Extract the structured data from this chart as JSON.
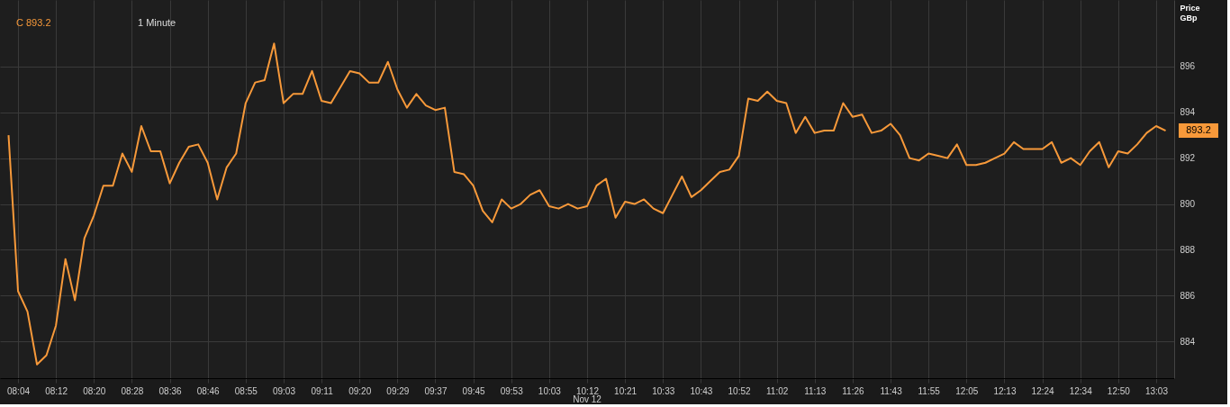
{
  "chart_data": {
    "type": "line",
    "ylabel": "Price GBp",
    "categories": [
      null,
      "08:04",
      null,
      null,
      null,
      "08:12",
      null,
      null,
      null,
      "08:20",
      null,
      null,
      null,
      "08:28",
      null,
      null,
      null,
      "08:36",
      null,
      null,
      null,
      "08:46",
      null,
      null,
      null,
      "08:55",
      null,
      null,
      null,
      "09:03",
      null,
      null,
      null,
      "09:11",
      null,
      null,
      null,
      "09:20",
      null,
      null,
      null,
      "09:29",
      null,
      null,
      null,
      "09:37",
      null,
      null,
      null,
      "09:45",
      null,
      null,
      null,
      "09:53",
      null,
      null,
      null,
      "10:03",
      null,
      null,
      null,
      "10:12",
      null,
      null,
      null,
      "10:21",
      null,
      null,
      null,
      "10:33",
      null,
      null,
      null,
      "10:43",
      null,
      null,
      null,
      "10:52",
      null,
      null,
      null,
      "11:02",
      null,
      null,
      null,
      "11:13",
      null,
      null,
      null,
      "11:26",
      null,
      null,
      null,
      "11:43",
      null,
      null,
      null,
      "11:55",
      null,
      null,
      null,
      "12:05",
      null,
      null,
      null,
      "12:13",
      null,
      null,
      null,
      "12:24",
      null,
      null,
      null,
      "12:34",
      null,
      null,
      null,
      "12:50",
      null,
      null,
      null,
      "13:03",
      null
    ],
    "series": [
      {
        "color": "#f7993a",
        "values": [
          893.0,
          886.2,
          885.3,
          883.0,
          883.4,
          884.7,
          887.6,
          885.8,
          888.5,
          889.5,
          890.8,
          890.8,
          892.2,
          891.4,
          893.4,
          892.3,
          892.3,
          890.9,
          891.8,
          892.5,
          892.6,
          891.8,
          890.2,
          891.6,
          892.2,
          894.4,
          895.3,
          895.4,
          897.0,
          894.4,
          894.8,
          894.8,
          895.8,
          894.5,
          894.4,
          895.1,
          895.8,
          895.7,
          895.3,
          895.3,
          896.2,
          895.0,
          894.2,
          894.8,
          894.3,
          894.1,
          894.2,
          891.4,
          891.3,
          890.8,
          889.7,
          889.2,
          890.2,
          889.8,
          890.0,
          890.4,
          890.6,
          889.9,
          889.8,
          890.0,
          889.8,
          889.9,
          890.8,
          891.1,
          889.4,
          890.1,
          890.0,
          890.2,
          889.8,
          889.6,
          890.4,
          891.2,
          890.3,
          890.6,
          891.0,
          891.4,
          891.5,
          892.1,
          894.6,
          894.5,
          894.9,
          894.5,
          894.4,
          893.1,
          893.8,
          893.1,
          893.2,
          893.2,
          894.4,
          893.8,
          893.9,
          893.1,
          893.2,
          893.5,
          893.0,
          892.0,
          891.9,
          892.2,
          892.1,
          892.0,
          892.6,
          891.7,
          891.7,
          891.8,
          892.0,
          892.2,
          892.7,
          892.4,
          892.4,
          892.4,
          892.7,
          891.8,
          892.0,
          891.7,
          892.3,
          892.7,
          891.6,
          892.3,
          892.2,
          892.6,
          893.1,
          893.4,
          893.2
        ]
      }
    ],
    "ylim": [
      882.4,
      898.9
    ],
    "yticks": [
      884,
      886,
      888,
      890,
      892,
      894,
      896
    ],
    "grid": true,
    "marker": "none",
    "line_style": "solid",
    "annotations": [
      "C 893.2",
      "1 Minute",
      "Nov 12",
      "893.2"
    ]
  }
}
